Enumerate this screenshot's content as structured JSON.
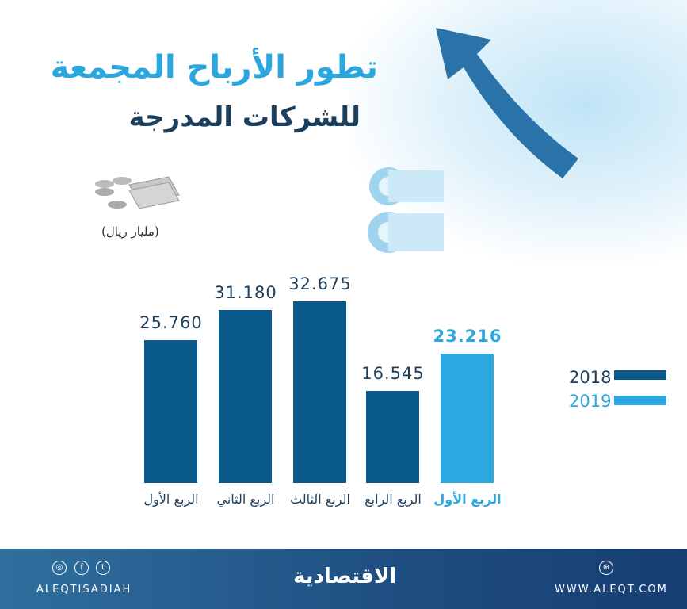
{
  "title": {
    "line1": "تطور الأرباح المجمعة",
    "line2": "للشركات المدرجة"
  },
  "unit": "(مليار ريال)",
  "colors": {
    "y2018": "#0a5a8c",
    "y2019": "#2aa8df"
  },
  "chart_data": {
    "type": "bar",
    "ylabel": "(مليار ريال)",
    "ylim": [
      0,
      35
    ],
    "bars": [
      {
        "category": "الربع الأول",
        "series": "2018",
        "value": 25.76,
        "label": "25.760"
      },
      {
        "category": "الربع الثاني",
        "series": "2018",
        "value": 31.18,
        "label": "31.180"
      },
      {
        "category": "الربع الثالث",
        "series": "2018",
        "value": 32.675,
        "label": "32.675"
      },
      {
        "category": "الربع الرابع",
        "series": "2018",
        "value": 16.545,
        "label": "16.545"
      },
      {
        "category": "الربع الأول",
        "series": "2019",
        "value": 23.216,
        "label": "23.216"
      }
    ],
    "legend": [
      {
        "name": "2018",
        "color": "#0a5a8c"
      },
      {
        "name": "2019",
        "color": "#2aa8df"
      }
    ],
    "legend_position": "right"
  },
  "footer": {
    "handle": "ALEQTISADIAH",
    "logo": "الاقتصادية",
    "website": "WWW.ALEQT.COM",
    "social_icons": [
      "instagram-icon",
      "facebook-icon",
      "twitter-icon"
    ],
    "web_icon": "globe-icon"
  }
}
